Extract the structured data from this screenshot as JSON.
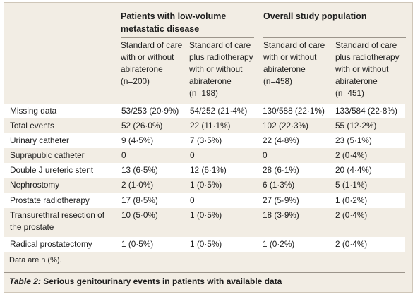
{
  "groups": [
    {
      "title": "Patients with low-volume metastatic disease"
    },
    {
      "title": "Overall study population"
    }
  ],
  "columns": [
    "Standard of care with or without abiraterone (n=200)",
    "Standard of care plus radiotherapy with or without abiraterone (n=198)",
    "Standard of care with or without abiraterone (n=458)",
    "Standard of care plus radiotherapy with or without abiraterone (n=451)"
  ],
  "rows": [
    {
      "label": "Missing data",
      "values": [
        "53/253 (20·9%)",
        "54/252 (21·4%)",
        "130/588 (22·1%)",
        "133/584 (22·8%)"
      ]
    },
    {
      "label": "Total events",
      "values": [
        "52 (26·0%)",
        "22 (11·1%)",
        "102 (22·3%)",
        "55 (12·2%)"
      ]
    },
    {
      "label": "Urinary catheter",
      "values": [
        "9 (4·5%)",
        "7 (3·5%)",
        "22 (4·8%)",
        "23 (5·1%)"
      ]
    },
    {
      "label": "Suprapubic catheter",
      "values": [
        "0",
        "0",
        "0",
        "2 (0·4%)"
      ]
    },
    {
      "label": "Double J ureteric stent",
      "values": [
        "13 (6·5%)",
        "12 (6·1%)",
        "28 (6·1%)",
        "20 (4·4%)"
      ]
    },
    {
      "label": "Nephrostomy",
      "values": [
        "2 (1·0%)",
        "1 (0·5%)",
        "6 (1·3%)",
        "5 (1·1%)"
      ]
    },
    {
      "label": "Prostate radiotherapy",
      "values": [
        "17 (8·5%)",
        "0",
        "27 (5·9%)",
        "1 (0·2%)"
      ]
    },
    {
      "label": "Transurethral resection of the prostate",
      "values": [
        "10 (5·0%)",
        "1 (0·5%)",
        "18 (3·9%)",
        "2 (0·4%)"
      ]
    },
    {
      "label": "Radical prostatectomy",
      "values": [
        "1 (0·5%)",
        "1 (0·5%)",
        "1 (0·2%)",
        "2 (0·4%)"
      ]
    }
  ],
  "footnote": "Data are n (%).",
  "caption": {
    "label": "Table 2:",
    "text": "Serious genitourinary events in patients with available data"
  }
}
